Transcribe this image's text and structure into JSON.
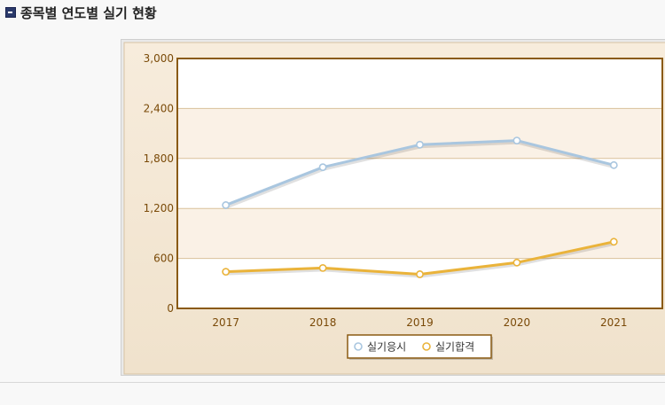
{
  "page": {
    "title": "종목별 연도별 실기 현황"
  },
  "colors": {
    "frame_bg": "#f0e2cc",
    "plot_border": "#8a5a12",
    "band_light": "#ffffff",
    "band_tint": "#faf1e6",
    "grid": "#d9c19a",
    "tick_text": "#7a4a08",
    "series_apply": "#a9c6df",
    "series_pass": "#eab33a"
  },
  "chart_data": {
    "type": "line",
    "title": "",
    "xlabel": "",
    "ylabel": "",
    "categories": [
      "2017",
      "2018",
      "2019",
      "2020",
      "2021"
    ],
    "ylim": [
      0,
      3000
    ],
    "yticks": [
      0,
      600,
      1200,
      1800,
      2400,
      3000
    ],
    "ytick_labels": [
      "0",
      "600",
      "1,200",
      "1,800",
      "2,400",
      "3,000"
    ],
    "grid": true,
    "legend_position": "bottom-center",
    "series": [
      {
        "name": "실기응시",
        "values": [
          1240,
          1695,
          1965,
          2015,
          1720
        ],
        "color": "#a9c6df"
      },
      {
        "name": "실기합격",
        "values": [
          440,
          485,
          410,
          550,
          800
        ],
        "color": "#eab33a"
      }
    ]
  }
}
